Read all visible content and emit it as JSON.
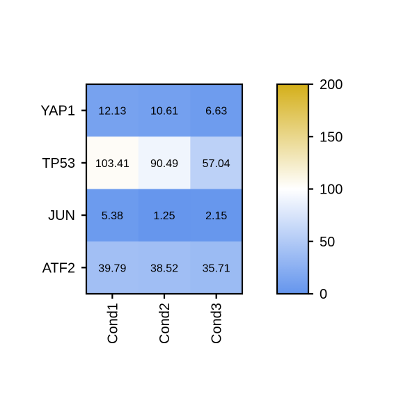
{
  "chart_data": {
    "type": "heatmap",
    "title": "",
    "xlabel": "",
    "ylabel": "",
    "rows": [
      "YAP1",
      "TP53",
      "JUN",
      "ATF2"
    ],
    "columns": [
      "Cond1",
      "Cond2",
      "Cond3"
    ],
    "values": [
      [
        12.13,
        10.61,
        6.63
      ],
      [
        103.41,
        90.49,
        57.04
      ],
      [
        5.38,
        1.25,
        2.15
      ],
      [
        39.79,
        38.52,
        35.71
      ]
    ],
    "value_labels": [
      [
        "12.13",
        "10.61",
        "6.63"
      ],
      [
        "103.41",
        "90.49",
        "57.04"
      ],
      [
        "5.38",
        "1.25",
        "2.15"
      ],
      [
        "39.79",
        "38.52",
        "35.71"
      ]
    ],
    "colorbar": {
      "range": [
        0,
        200
      ],
      "ticks": [
        0,
        50,
        100,
        150,
        200
      ],
      "tick_labels": [
        "0",
        "50",
        "100",
        "150",
        "200"
      ],
      "colors": {
        "low": "#6495ED",
        "mid": "#FFFFFF",
        "high": "#D4AF19"
      },
      "placement": "right"
    }
  }
}
